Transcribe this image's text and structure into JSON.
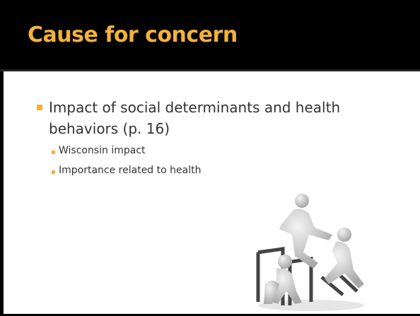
{
  "title": "Cause for concern",
  "bullets": [
    {
      "text": "Impact of social determinants and health behaviors (p. 16)",
      "sub": [
        "Wisconsin impact",
        "Importance related to health"
      ]
    }
  ]
}
